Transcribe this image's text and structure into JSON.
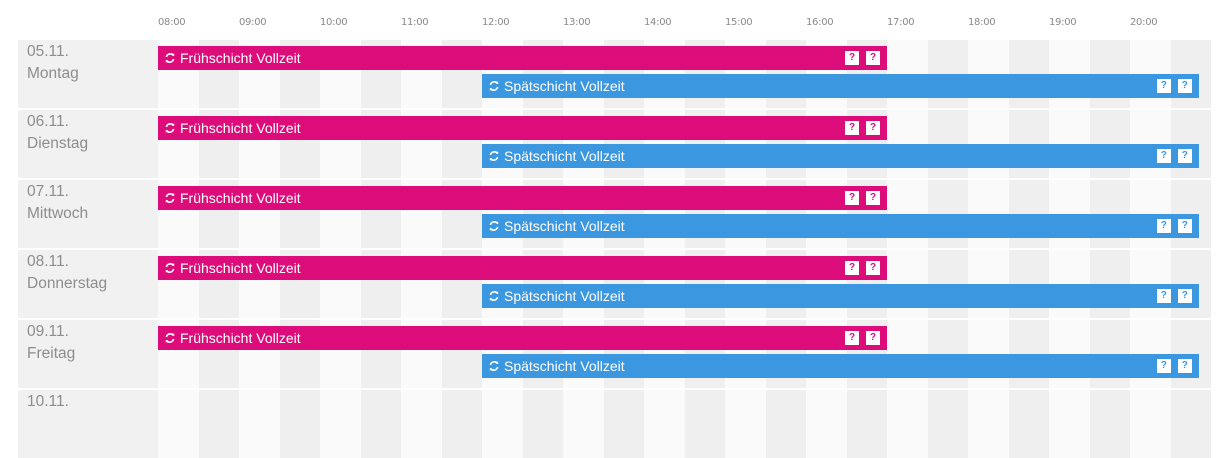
{
  "timeline": {
    "hours": [
      "08:00",
      "09:00",
      "10:00",
      "11:00",
      "12:00",
      "13:00",
      "14:00",
      "15:00",
      "16:00",
      "17:00",
      "18:00",
      "19:00",
      "20:00"
    ]
  },
  "colors": {
    "early": "#dc0d7b",
    "late": "#3a97e0"
  },
  "shift_names": {
    "early": "Frühschicht Vollzeit",
    "late": "Spätschicht Vollzeit"
  },
  "shift_times": {
    "early": {
      "start": 8.0,
      "end": 17.0
    },
    "late": {
      "start": 12.0,
      "end": 20.85
    }
  },
  "question_label": "?",
  "days": [
    {
      "date": "05.11.",
      "weekday": "Montag"
    },
    {
      "date": "06.11.",
      "weekday": "Dienstag"
    },
    {
      "date": "07.11.",
      "weekday": "Mittwoch"
    },
    {
      "date": "08.11.",
      "weekday": "Donnerstag"
    },
    {
      "date": "09.11.",
      "weekday": "Freitag"
    },
    {
      "date": "10.11.",
      "weekday": ""
    }
  ]
}
